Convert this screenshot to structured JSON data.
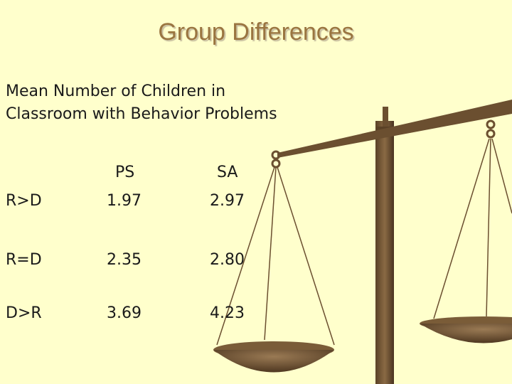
{
  "title": "Group Differences",
  "subtitle": [
    "Mean Number of Children in",
    "Classroom with Behavior Problems"
  ],
  "table": {
    "header": [
      "PS",
      "SA"
    ],
    "rows": [
      [
        "R>D",
        "1.97",
        "2.97"
      ],
      [
        "R=D",
        "2.35",
        "2.80"
      ],
      [
        "D>R",
        "3.69",
        "4.23"
      ]
    ]
  }
}
